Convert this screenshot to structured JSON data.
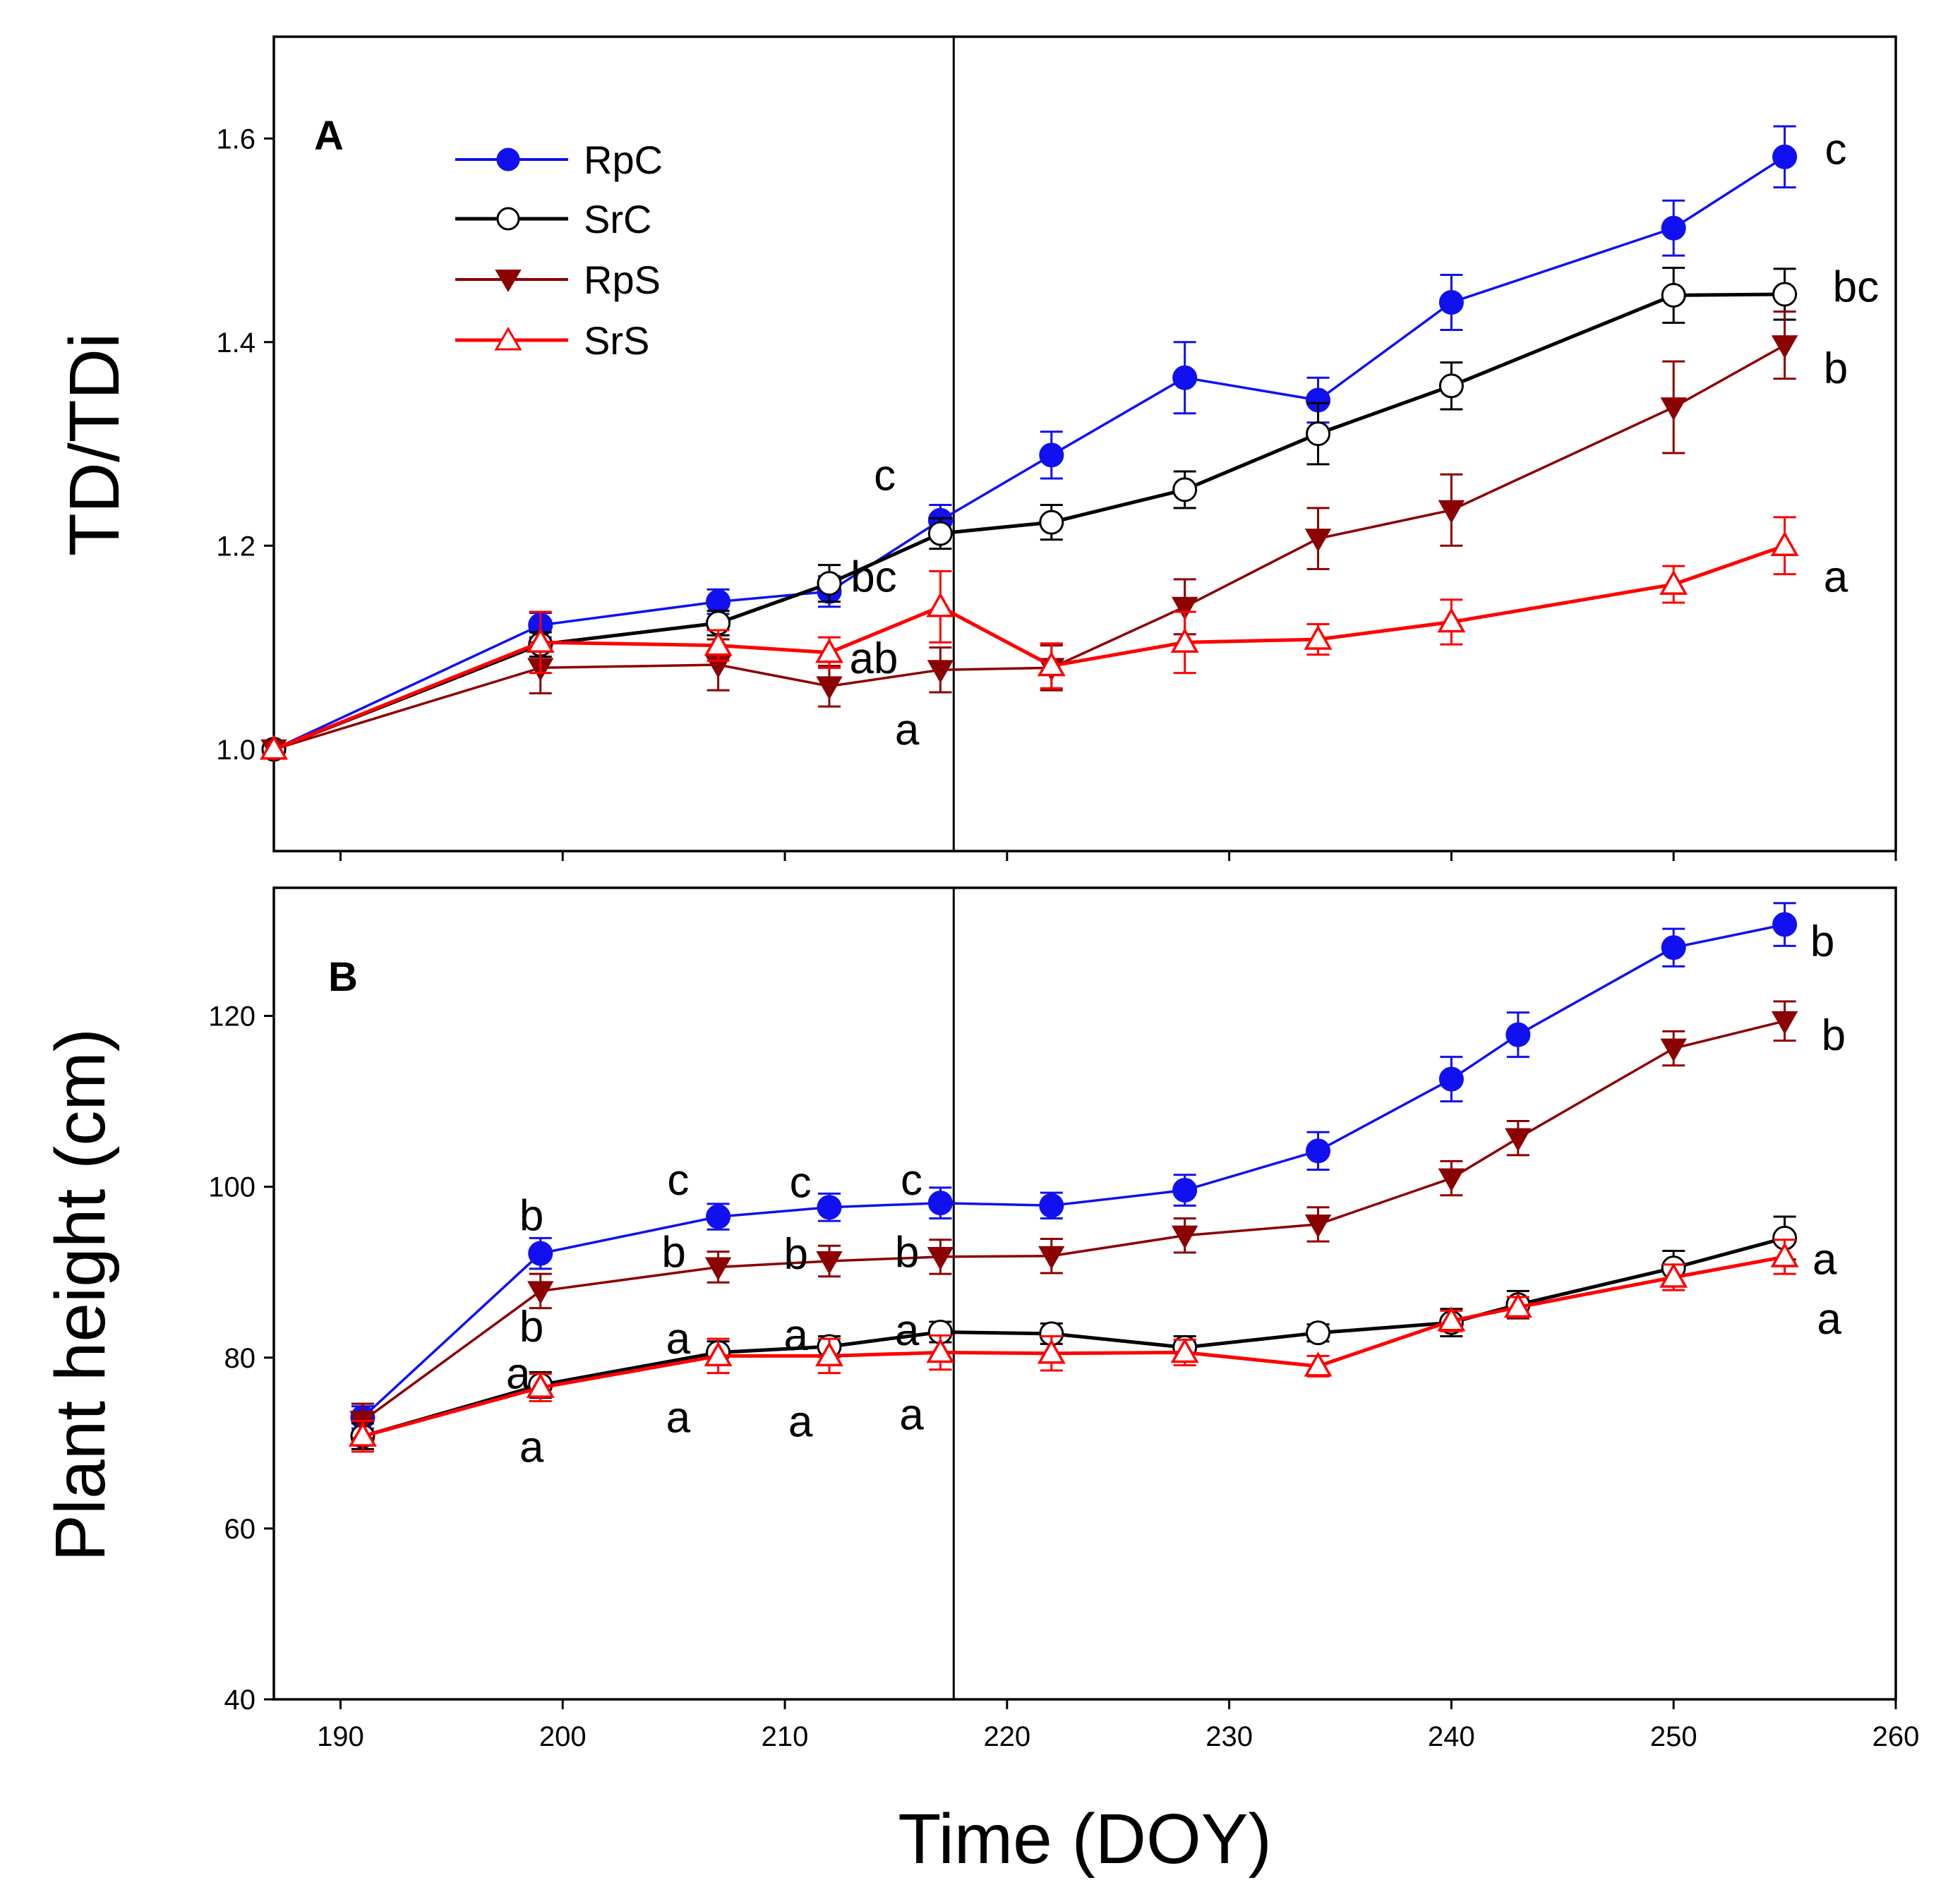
{
  "chart_data": [
    {
      "panel": "A",
      "type": "line",
      "ylabel": "TD/TDi",
      "xlim": [
        187,
        260
      ],
      "ylim": [
        0.9,
        1.7
      ],
      "yticks": [
        1.0,
        1.2,
        1.4,
        1.6
      ],
      "ytick_labels": [
        "1.0",
        "1.2",
        "1.4",
        "1.6"
      ],
      "xticks": [
        190,
        200,
        210,
        220,
        230,
        240,
        250,
        260
      ],
      "divider_x": 217.6,
      "legend": {
        "position": "top-left",
        "entries": [
          "RpC",
          "SrC",
          "RpS",
          "SrS"
        ]
      },
      "series": [
        {
          "name": "RpC",
          "color": "#1010f0",
          "marker": "circle-filled",
          "x": [
            187,
            199,
            207,
            212,
            217,
            222,
            228,
            234,
            240,
            250,
            255
          ],
          "y": [
            1.0,
            1.122,
            1.145,
            1.155,
            1.225,
            1.289,
            1.365,
            1.343,
            1.439,
            1.512,
            1.582
          ],
          "err": [
            0,
            0.012,
            0.012,
            0.015,
            0.015,
            0.023,
            0.035,
            0.022,
            0.027,
            0.027,
            0.03
          ]
        },
        {
          "name": "SrC",
          "color": "#000000",
          "marker": "circle-open",
          "x": [
            187,
            199,
            207,
            212,
            217,
            222,
            228,
            234,
            240,
            250,
            255
          ],
          "y": [
            1.0,
            1.103,
            1.124,
            1.163,
            1.212,
            1.223,
            1.255,
            1.31,
            1.357,
            1.446,
            1.447
          ],
          "err": [
            0,
            0.012,
            0.012,
            0.018,
            0.015,
            0.017,
            0.018,
            0.03,
            0.023,
            0.027,
            0.025
          ]
        },
        {
          "name": "RpS",
          "color": "#8b0000",
          "marker": "triangle-down-filled",
          "x": [
            187,
            199,
            207,
            212,
            217,
            222,
            228,
            234,
            240,
            250,
            255
          ],
          "y": [
            1.0,
            1.08,
            1.083,
            1.062,
            1.078,
            1.08,
            1.14,
            1.207,
            1.235,
            1.336,
            1.397
          ],
          "err": [
            0,
            0.025,
            0.025,
            0.02,
            0.022,
            0.022,
            0.027,
            0.03,
            0.035,
            0.045,
            0.033
          ]
        },
        {
          "name": "SrS",
          "color": "#ff0000",
          "marker": "triangle-up-open",
          "x": [
            187,
            199,
            207,
            212,
            217,
            222,
            228,
            234,
            240,
            250,
            255
          ],
          "y": [
            1.0,
            1.105,
            1.102,
            1.095,
            1.14,
            1.082,
            1.105,
            1.108,
            1.125,
            1.162,
            1.2
          ],
          "err": [
            0,
            0.03,
            0.015,
            0.015,
            0.035,
            0.022,
            0.03,
            0.015,
            0.022,
            0.018,
            0.028
          ]
        }
      ],
      "annotations": [
        {
          "text": "c",
          "x": 214.5,
          "y": 1.27
        },
        {
          "text": "bc",
          "x": 214.0,
          "y": 1.17
        },
        {
          "text": "ab",
          "x": 214.0,
          "y": 1.09
        },
        {
          "text": "a",
          "x": 215.5,
          "y": 1.02
        },
        {
          "text": "c",
          "x": 257.3,
          "y": 1.59
        },
        {
          "text": "bc",
          "x": 258.2,
          "y": 1.455
        },
        {
          "text": "b",
          "x": 257.3,
          "y": 1.375
        },
        {
          "text": "a",
          "x": 257.3,
          "y": 1.17
        }
      ]
    },
    {
      "panel": "B",
      "type": "line",
      "ylabel": "Plant height (cm)",
      "xlabel": "Time (DOY)",
      "xlim": [
        187,
        260
      ],
      "ylim": [
        40,
        135
      ],
      "yticks": [
        40,
        60,
        80,
        100,
        120
      ],
      "ytick_labels": [
        "40",
        "60",
        "80",
        "100",
        "120"
      ],
      "xticks": [
        190,
        200,
        210,
        220,
        230,
        240,
        250,
        260
      ],
      "xtick_labels": [
        "190",
        "200",
        "210",
        "220",
        "230",
        "240",
        "250",
        "260"
      ],
      "divider_x": 217.6,
      "series": [
        {
          "name": "RpC",
          "color": "#1010f0",
          "marker": "circle-filled",
          "x": [
            191,
            199,
            207,
            212,
            217,
            222,
            228,
            234,
            240,
            243,
            250,
            255
          ],
          "y": [
            73.0,
            92.2,
            96.5,
            97.6,
            98.1,
            97.8,
            99.6,
            104.2,
            112.6,
            117.8,
            128.0,
            130.7
          ],
          "err": [
            1.3,
            1.8,
            1.5,
            1.6,
            1.8,
            1.5,
            1.8,
            2.2,
            2.6,
            2.6,
            2.2,
            2.5
          ]
        },
        {
          "name": "SrC",
          "color": "#000000",
          "marker": "circle-open",
          "x": [
            191,
            199,
            207,
            212,
            217,
            222,
            228,
            234,
            240,
            243,
            250,
            255
          ],
          "y": [
            70.8,
            76.8,
            80.6,
            81.3,
            83.0,
            82.8,
            81.2,
            82.9,
            84.1,
            86.2,
            90.5,
            94.0
          ],
          "err": [
            1.5,
            1.5,
            1.3,
            1.2,
            1.2,
            1.2,
            1.3,
            1.0,
            1.6,
            1.6,
            2.0,
            2.5
          ]
        },
        {
          "name": "RpS",
          "color": "#8b0000",
          "marker": "triangle-down-filled",
          "x": [
            191,
            199,
            207,
            212,
            217,
            222,
            228,
            234,
            240,
            243,
            250,
            255
          ],
          "y": [
            72.6,
            87.8,
            90.6,
            91.3,
            91.8,
            91.9,
            94.3,
            95.6,
            101.0,
            105.7,
            116.2,
            119.4
          ],
          "err": [
            2.0,
            2.0,
            1.8,
            1.8,
            2.0,
            2.0,
            2.0,
            2.0,
            2.0,
            2.0,
            2.0,
            2.3
          ]
        },
        {
          "name": "SrS",
          "color": "#ff0000",
          "marker": "triangle-up-open",
          "x": [
            191,
            199,
            207,
            212,
            217,
            222,
            228,
            234,
            240,
            243,
            250,
            255
          ],
          "y": [
            70.8,
            76.5,
            80.2,
            80.2,
            80.6,
            80.5,
            80.6,
            79.0,
            84.3,
            85.9,
            89.4,
            91.8
          ],
          "err": [
            1.8,
            1.6,
            2.0,
            2.0,
            2.0,
            2.0,
            1.5,
            1.2,
            1.2,
            1.2,
            1.5,
            2.0
          ]
        }
      ],
      "annotations": [
        {
          "text": "b",
          "x": 198.6,
          "y": 96.7
        },
        {
          "text": "b",
          "x": 198.6,
          "y": 83.7
        },
        {
          "text": "a",
          "x": 198.0,
          "y": 78.2
        },
        {
          "text": "a",
          "x": 198.6,
          "y": 69.6
        },
        {
          "text": "c",
          "x": 205.2,
          "y": 100.9
        },
        {
          "text": "b",
          "x": 205.0,
          "y": 92.4
        },
        {
          "text": "a",
          "x": 205.2,
          "y": 82.3
        },
        {
          "text": "a",
          "x": 205.2,
          "y": 73.1
        },
        {
          "text": "c",
          "x": 210.7,
          "y": 100.6
        },
        {
          "text": "b",
          "x": 210.5,
          "y": 92.2
        },
        {
          "text": "a",
          "x": 210.5,
          "y": 82.7
        },
        {
          "text": "a",
          "x": 210.7,
          "y": 72.6
        },
        {
          "text": "c",
          "x": 215.7,
          "y": 100.9
        },
        {
          "text": "b",
          "x": 215.5,
          "y": 92.4
        },
        {
          "text": "a",
          "x": 215.5,
          "y": 83.3
        },
        {
          "text": "a",
          "x": 215.7,
          "y": 73.4
        },
        {
          "text": "b",
          "x": 256.7,
          "y": 128.8
        },
        {
          "text": "b",
          "x": 257.2,
          "y": 117.8
        },
        {
          "text": "a",
          "x": 256.8,
          "y": 91.6
        },
        {
          "text": "a",
          "x": 257.0,
          "y": 84.6
        }
      ]
    }
  ],
  "panel_labels": {
    "a": "A",
    "b": "B"
  },
  "axis_titles": {
    "top_y": "TD/TDi",
    "bottom_y": "Plant height (cm)",
    "x": "Time (DOY)"
  },
  "legend_labels": {
    "rpc": "RpC",
    "src": "SrC",
    "rps": "RpS",
    "srs": "SrS"
  },
  "colors": {
    "RpC": "#1010f0",
    "SrC": "#000000",
    "RpS": "#8b0000",
    "SrS": "#ff0000"
  }
}
